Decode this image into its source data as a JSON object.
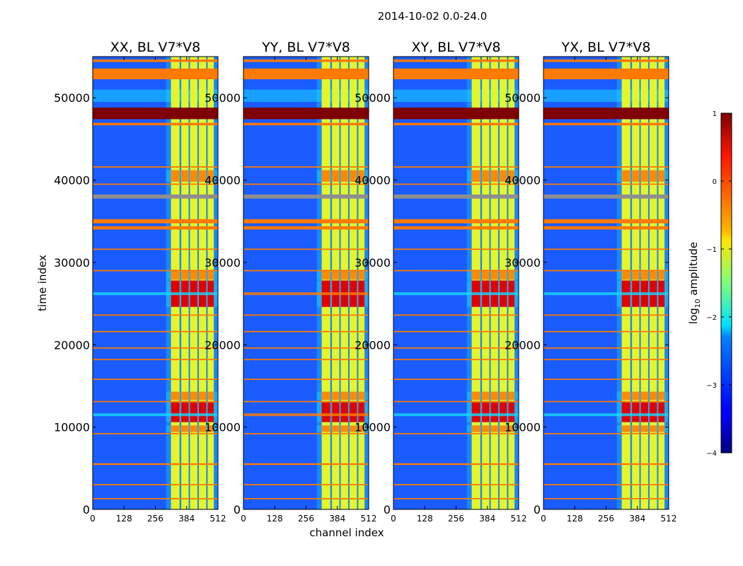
{
  "chart_data": {
    "type": "heatmap",
    "suptitle": "2014-10-02 0.0-24.0",
    "xlabel": "channel index",
    "ylabel": "time index",
    "xlim": [
      0,
      512
    ],
    "ylim": [
      0,
      55000
    ],
    "xticks": [
      "0",
      "128",
      "256",
      "384",
      "512"
    ],
    "yticks": [
      "0",
      "10000",
      "20000",
      "30000",
      "40000",
      "50000"
    ],
    "panels": [
      {
        "title": "XX, BL V7*V8"
      },
      {
        "title": "YY, BL V7*V8"
      },
      {
        "title": "XY, BL V7*V8"
      },
      {
        "title": "YX, BL V7*V8"
      }
    ],
    "colorbar": {
      "label_main": "log",
      "label_sub": "10",
      "label_tail": " amplitude",
      "range": [
        -4,
        1
      ],
      "ticks": [
        "1",
        "0",
        "−1",
        "−2",
        "−3",
        "−4"
      ],
      "colormap": "jet"
    },
    "colors": {
      "background": "#1a5cff",
      "flag_red": "#7f0000",
      "flag_orange": "#ff7a00",
      "flag_gray": "#8f8f8f",
      "band_yellow": "#e6f52a",
      "band_cyan": "#16d9ff"
    }
  }
}
